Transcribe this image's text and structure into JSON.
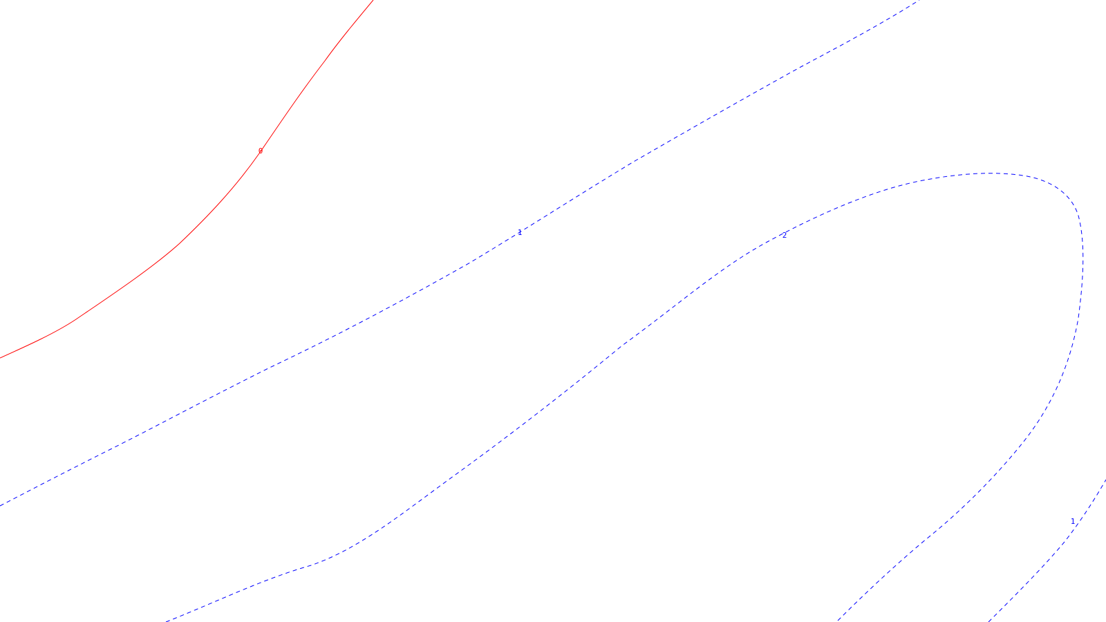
{
  "contours": [
    {
      "id": "contour-0",
      "level_label": "0",
      "style": "solid",
      "color": "#ff0000"
    },
    {
      "id": "contour-1-upper",
      "level_label": "1",
      "style": "dashed",
      "color": "#0000ff"
    },
    {
      "id": "contour-2",
      "level_label": "2",
      "style": "dashed",
      "color": "#0000ff"
    },
    {
      "id": "contour-1-lower",
      "level_label": "1",
      "style": "dashed",
      "color": "#0000ff"
    }
  ]
}
